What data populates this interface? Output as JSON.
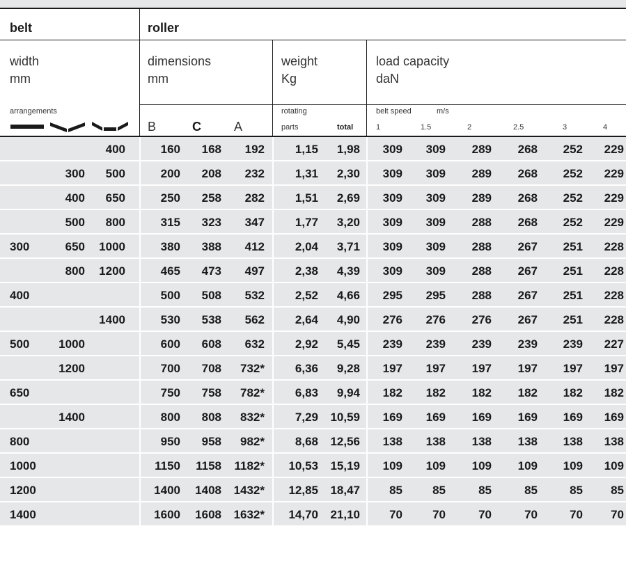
{
  "header": {
    "belt": "belt",
    "roller": "roller",
    "width": "width",
    "width_unit": "mm",
    "dimensions": "dimensions",
    "dimensions_unit": "mm",
    "weight": "weight",
    "weight_unit": "Kg",
    "load_capacity": "load capacity",
    "load_unit": "daN",
    "arrangements": "arrangements",
    "rotating": "rotating",
    "belt_speed": "belt speed",
    "speed_unit": "m/s",
    "col_B": "B",
    "col_C": "C",
    "col_A": "A",
    "parts": "parts",
    "total": "total",
    "speeds": [
      "1",
      "1.5",
      "2",
      "2.5",
      "3",
      "4"
    ]
  },
  "arrangement_icons": [
    "flat-roller-icon",
    "two-roller-trough-icon",
    "three-roller-trough-icon"
  ],
  "rows": [
    [
      "",
      "",
      "400",
      "160",
      "168",
      "192",
      "1,15",
      "1,98",
      "309",
      "309",
      "289",
      "268",
      "252",
      "229"
    ],
    [
      "",
      "300",
      "500",
      "200",
      "208",
      "232",
      "1,31",
      "2,30",
      "309",
      "309",
      "289",
      "268",
      "252",
      "229"
    ],
    [
      "",
      "400",
      "650",
      "250",
      "258",
      "282",
      "1,51",
      "2,69",
      "309",
      "309",
      "289",
      "268",
      "252",
      "229"
    ],
    [
      "",
      "500",
      "800",
      "315",
      "323",
      "347",
      "1,77",
      "3,20",
      "309",
      "309",
      "288",
      "268",
      "252",
      "229"
    ],
    [
      "300",
      "650",
      "1000",
      "380",
      "388",
      "412",
      "2,04",
      "3,71",
      "309",
      "309",
      "288",
      "267",
      "251",
      "228"
    ],
    [
      "",
      "800",
      "1200",
      "465",
      "473",
      "497",
      "2,38",
      "4,39",
      "309",
      "309",
      "288",
      "267",
      "251",
      "228"
    ],
    [
      "400",
      "",
      "",
      "500",
      "508",
      "532",
      "2,52",
      "4,66",
      "295",
      "295",
      "288",
      "267",
      "251",
      "228"
    ],
    [
      "",
      "",
      "1400",
      "530",
      "538",
      "562",
      "2,64",
      "4,90",
      "276",
      "276",
      "276",
      "267",
      "251",
      "228"
    ],
    [
      "500",
      "1000",
      "",
      "600",
      "608",
      "632",
      "2,92",
      "5,45",
      "239",
      "239",
      "239",
      "239",
      "239",
      "227"
    ],
    [
      "",
      "1200",
      "",
      "700",
      "708",
      "732*",
      "6,36",
      "9,28",
      "197",
      "197",
      "197",
      "197",
      "197",
      "197"
    ],
    [
      "650",
      "",
      "",
      "750",
      "758",
      "782*",
      "6,83",
      "9,94",
      "182",
      "182",
      "182",
      "182",
      "182",
      "182"
    ],
    [
      "",
      "1400",
      "",
      "800",
      "808",
      "832*",
      "7,29",
      "10,59",
      "169",
      "169",
      "169",
      "169",
      "169",
      "169"
    ],
    [
      "800",
      "",
      "",
      "950",
      "958",
      "982*",
      "8,68",
      "12,56",
      "138",
      "138",
      "138",
      "138",
      "138",
      "138"
    ],
    [
      "1000",
      "",
      "",
      "1150",
      "1158",
      "1182*",
      "10,53",
      "15,19",
      "109",
      "109",
      "109",
      "109",
      "109",
      "109"
    ],
    [
      "1200",
      "",
      "",
      "1400",
      "1408",
      "1432*",
      "12,85",
      "18,47",
      "85",
      "85",
      "85",
      "85",
      "85",
      "85"
    ],
    [
      "1400",
      "",
      "",
      "1600",
      "1608",
      "1632*",
      "14,70",
      "21,10",
      "70",
      "70",
      "70",
      "70",
      "70",
      "70"
    ]
  ]
}
